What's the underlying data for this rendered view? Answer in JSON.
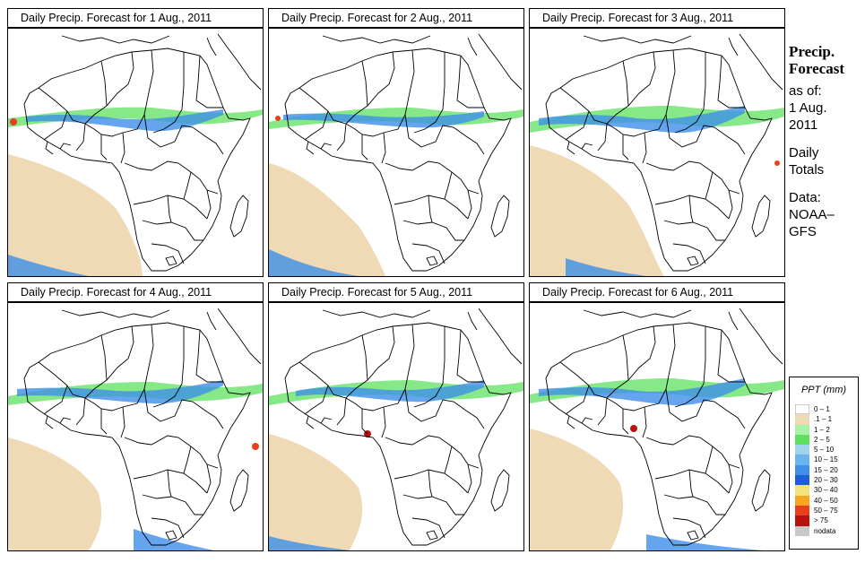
{
  "panels": [
    {
      "title": "Daily Precip. Forecast for  1 Aug., 2011"
    },
    {
      "title": "Daily Precip. Forecast for  2 Aug., 2011"
    },
    {
      "title": "Daily Precip. Forecast for  3 Aug., 2011"
    },
    {
      "title": "Daily Precip. Forecast for  4 Aug., 2011"
    },
    {
      "title": "Daily Precip. Forecast for  5 Aug., 2011"
    },
    {
      "title": "Daily Precip. Forecast for  6 Aug., 2011"
    }
  ],
  "side_text": {
    "title_line1": "Precip.",
    "title_line2": "Forecast",
    "asof_line1": "as of:",
    "asof_line2": "1 Aug.",
    "asof_line3": "2011",
    "totals_line1": "Daily",
    "totals_line2": "Totals",
    "data_line1": "Data:",
    "data_line2": "NOAA–",
    "data_line3": "GFS"
  },
  "legend": {
    "title": "PPT (mm)",
    "items": [
      {
        "label": "0 – 1",
        "color": "#ffffff"
      },
      {
        "label": ".1 – 1",
        "color": "#f0d9b5"
      },
      {
        "label": "1 – 2",
        "color": "#a6f2a6"
      },
      {
        "label": "2 – 5",
        "color": "#5ee05e"
      },
      {
        "label": "5 – 10",
        "color": "#9fd3f0"
      },
      {
        "label": "10 – 15",
        "color": "#6bb4ef"
      },
      {
        "label": "15 – 20",
        "color": "#3d8fe8"
      },
      {
        "label": "20 – 30",
        "color": "#1f5fd6"
      },
      {
        "label": "30 – 40",
        "color": "#f5e27a"
      },
      {
        "label": "40 – 50",
        "color": "#f5a623"
      },
      {
        "label": "50 – 75",
        "color": "#e8401c"
      },
      {
        "label": "> 75",
        "color": "#b8120f"
      },
      {
        "label": "nodata",
        "color": "#c8c8c8"
      }
    ]
  }
}
